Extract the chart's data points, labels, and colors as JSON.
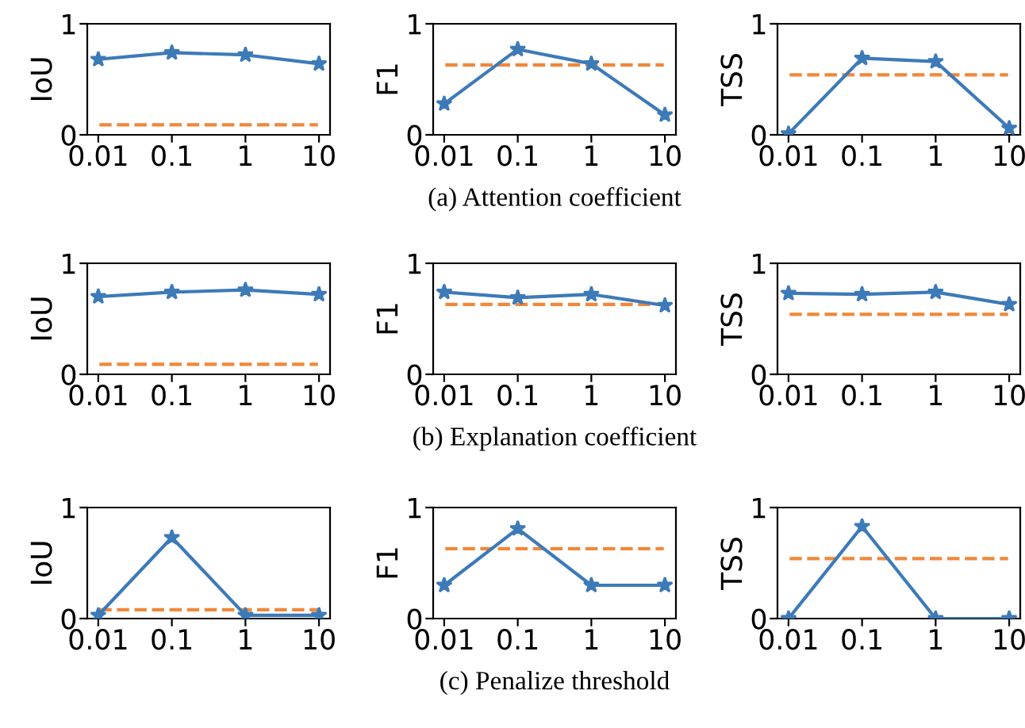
{
  "chart_data": [
    {
      "type": "line",
      "ylabel": "IoU",
      "categories": [
        "0.01",
        "0.1",
        "1",
        "10"
      ],
      "series": [
        {
          "color": "#3d7ab8",
          "values": [
            0.68,
            0.74,
            0.72,
            0.64
          ]
        }
      ],
      "ref_lines": [
        {
          "axis": "y",
          "value": 0.09,
          "color": "#f0883a",
          "line_style": "dashed"
        }
      ],
      "ylim": [
        0,
        1
      ],
      "yticks": [
        0,
        1
      ],
      "marker": "star",
      "line_style": "solid"
    },
    {
      "type": "line",
      "ylabel": "F1",
      "categories": [
        "0.01",
        "0.1",
        "1",
        "10"
      ],
      "series": [
        {
          "color": "#3d7ab8",
          "values": [
            0.28,
            0.77,
            0.64,
            0.18
          ]
        }
      ],
      "ref_lines": [
        {
          "axis": "y",
          "value": 0.63,
          "color": "#f0883a",
          "line_style": "dashed"
        }
      ],
      "ylim": [
        0,
        1
      ],
      "yticks": [
        0,
        1
      ],
      "marker": "star",
      "line_style": "solid",
      "annotations": [
        "(a) Attention coefficient"
      ]
    },
    {
      "type": "line",
      "ylabel": "TSS",
      "categories": [
        "0.01",
        "0.1",
        "1",
        "10"
      ],
      "series": [
        {
          "color": "#3d7ab8",
          "values": [
            0.01,
            0.69,
            0.66,
            0.06
          ]
        }
      ],
      "ref_lines": [
        {
          "axis": "y",
          "value": 0.54,
          "color": "#f0883a",
          "line_style": "dashed"
        }
      ],
      "ylim": [
        0,
        1
      ],
      "yticks": [
        0,
        1
      ],
      "marker": "star",
      "line_style": "solid"
    },
    {
      "type": "line",
      "ylabel": "IoU",
      "categories": [
        "0.01",
        "0.1",
        "1",
        "10"
      ],
      "series": [
        {
          "color": "#3d7ab8",
          "values": [
            0.7,
            0.74,
            0.76,
            0.72
          ]
        }
      ],
      "ref_lines": [
        {
          "axis": "y",
          "value": 0.09,
          "color": "#f0883a",
          "line_style": "dashed"
        }
      ],
      "ylim": [
        0,
        1
      ],
      "yticks": [
        0,
        1
      ],
      "marker": "star",
      "line_style": "solid"
    },
    {
      "type": "line",
      "ylabel": "F1",
      "categories": [
        "0.01",
        "0.1",
        "1",
        "10"
      ],
      "series": [
        {
          "color": "#3d7ab8",
          "values": [
            0.74,
            0.69,
            0.72,
            0.62
          ]
        }
      ],
      "ref_lines": [
        {
          "axis": "y",
          "value": 0.63,
          "color": "#f0883a",
          "line_style": "dashed"
        }
      ],
      "ylim": [
        0,
        1
      ],
      "yticks": [
        0,
        1
      ],
      "marker": "star",
      "line_style": "solid",
      "annotations": [
        "(b) Explanation coefficient"
      ]
    },
    {
      "type": "line",
      "ylabel": "TSS",
      "categories": [
        "0.01",
        "0.1",
        "1",
        "10"
      ],
      "series": [
        {
          "color": "#3d7ab8",
          "values": [
            0.73,
            0.72,
            0.74,
            0.63
          ]
        }
      ],
      "ref_lines": [
        {
          "axis": "y",
          "value": 0.54,
          "color": "#f0883a",
          "line_style": "dashed"
        }
      ],
      "ylim": [
        0,
        1
      ],
      "yticks": [
        0,
        1
      ],
      "marker": "star",
      "line_style": "solid"
    },
    {
      "type": "line",
      "ylabel": "IoU",
      "categories": [
        "0.01",
        "0.1",
        "1",
        "10"
      ],
      "series": [
        {
          "color": "#3d7ab8",
          "values": [
            0.03,
            0.73,
            0.03,
            0.03
          ]
        }
      ],
      "ref_lines": [
        {
          "axis": "y",
          "value": 0.08,
          "color": "#f0883a",
          "line_style": "dashed"
        }
      ],
      "ylim": [
        0,
        1
      ],
      "yticks": [
        0,
        1
      ],
      "marker": "star",
      "line_style": "solid"
    },
    {
      "type": "line",
      "ylabel": "F1",
      "categories": [
        "0.01",
        "0.1",
        "1",
        "10"
      ],
      "series": [
        {
          "color": "#3d7ab8",
          "values": [
            0.3,
            0.81,
            0.3,
            0.3
          ]
        }
      ],
      "ref_lines": [
        {
          "axis": "y",
          "value": 0.63,
          "color": "#f0883a",
          "line_style": "dashed"
        }
      ],
      "ylim": [
        0,
        1
      ],
      "yticks": [
        0,
        1
      ],
      "marker": "star",
      "line_style": "solid",
      "annotations": [
        "(c) Penalize threshold"
      ]
    },
    {
      "type": "line",
      "ylabel": "TSS",
      "categories": [
        "0.01",
        "0.1",
        "1",
        "10"
      ],
      "series": [
        {
          "color": "#3d7ab8",
          "values": [
            0.0,
            0.83,
            0.0,
            0.0
          ]
        }
      ],
      "ref_lines": [
        {
          "axis": "y",
          "value": 0.54,
          "color": "#f0883a",
          "line_style": "dashed"
        }
      ],
      "ylim": [
        0,
        1
      ],
      "yticks": [
        0,
        1
      ],
      "marker": "star",
      "line_style": "solid"
    }
  ]
}
